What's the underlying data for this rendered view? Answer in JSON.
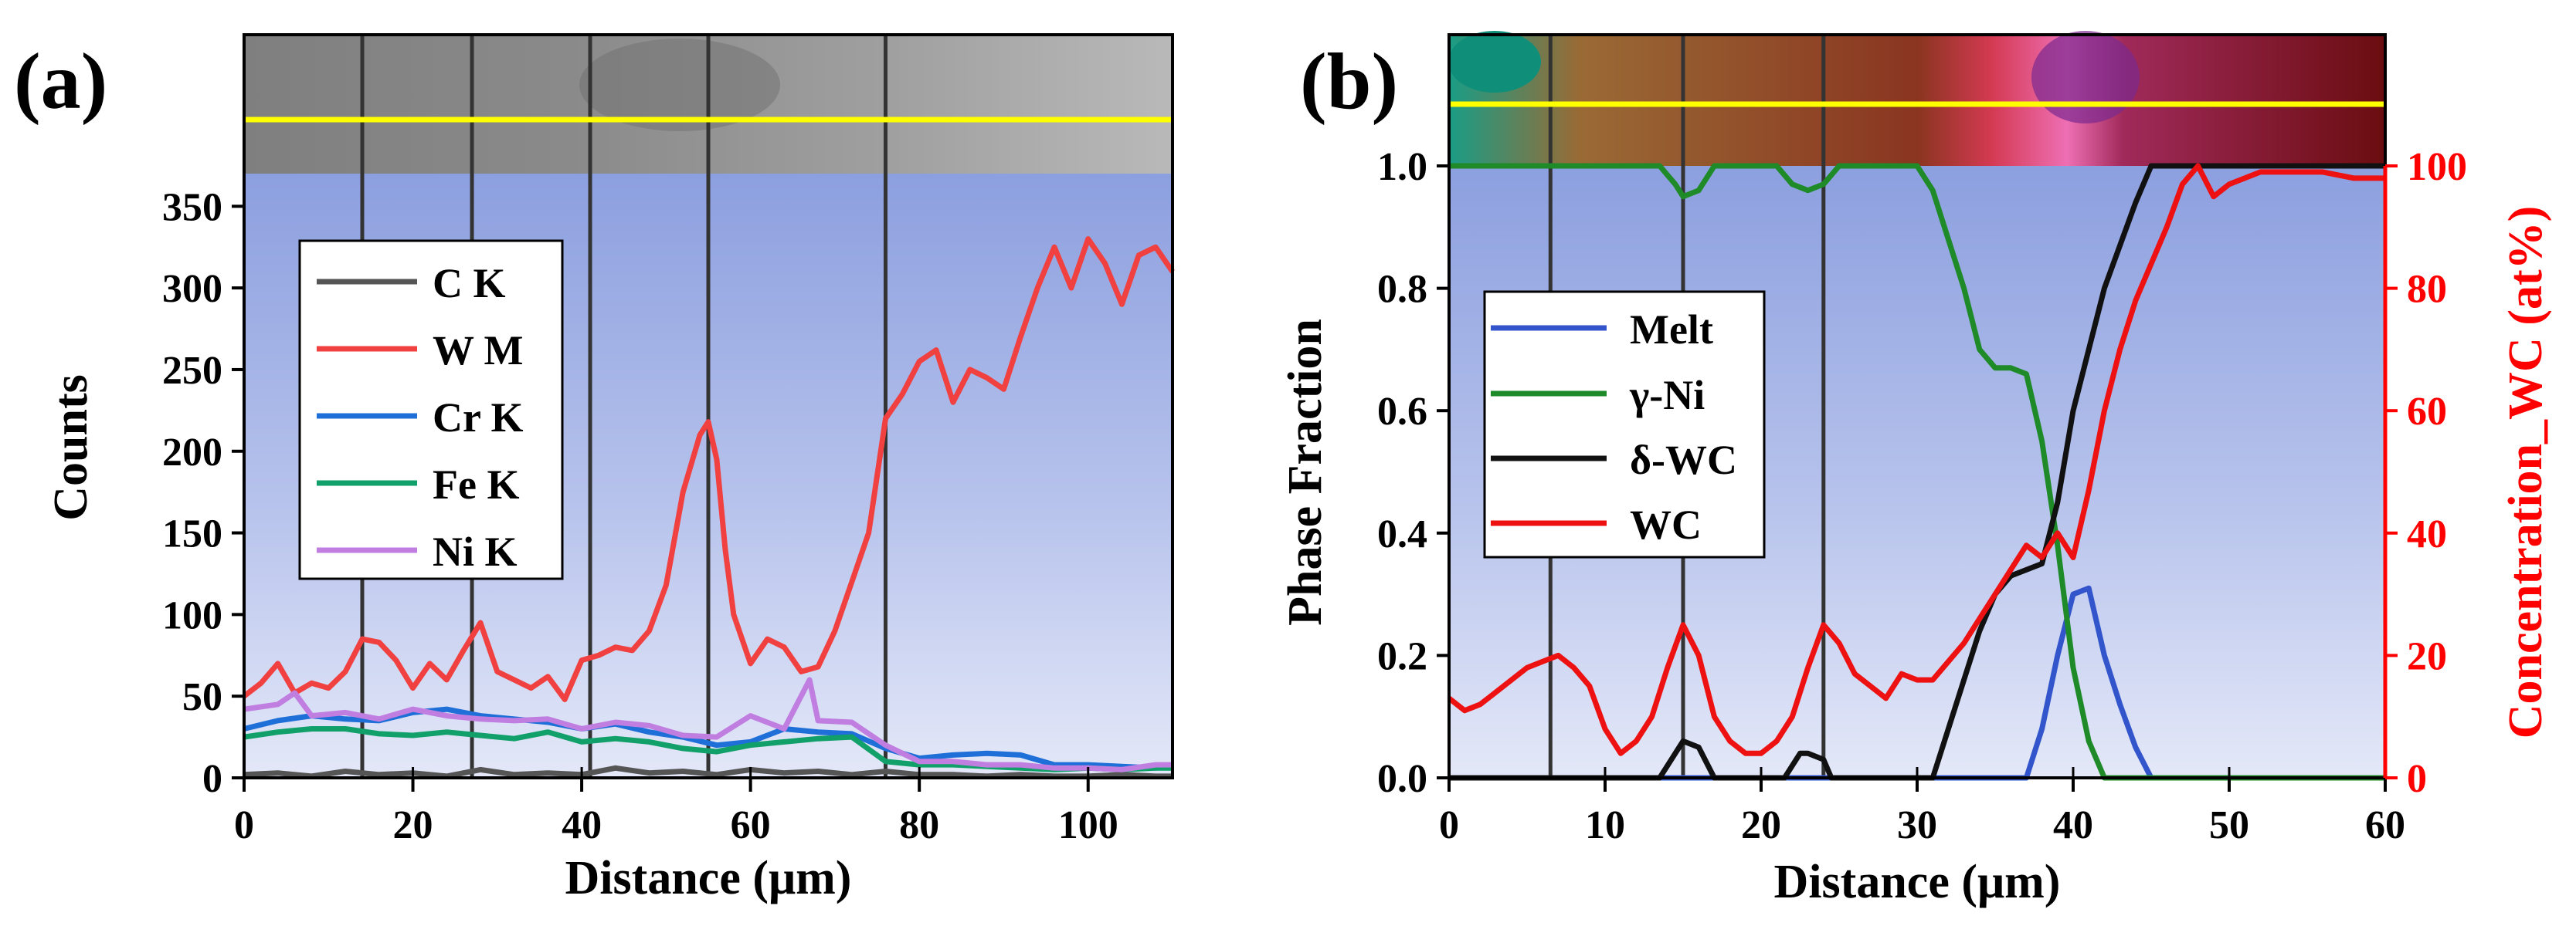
{
  "colors": {
    "ck": "#555555",
    "wm": "#f04040",
    "crk": "#1f6fd8",
    "fek": "#12a06a",
    "nik": "#c07ee0",
    "melt": "#3355cc",
    "gni": "#1e8a28",
    "dwc": "#111111",
    "wc": "#ee1111",
    "guide": "#333333",
    "scan": "#ffff00",
    "axis_right": "#ff0000"
  },
  "chart_data": [
    {
      "type": "line",
      "panel_label": "(a)",
      "xlabel": "Distance (μm)",
      "ylabel": "Counts",
      "xlim": [
        0,
        110
      ],
      "ylim": [
        0,
        370
      ],
      "xticks": [
        0,
        20,
        40,
        60,
        80,
        100
      ],
      "yticks": [
        0,
        50,
        100,
        150,
        200,
        250,
        300,
        350
      ],
      "guide_lines_x": [
        14,
        27,
        41,
        55,
        76
      ],
      "legend": {
        "position": "upper-left",
        "entries": [
          "C K",
          "W M",
          "Cr K",
          "Fe K",
          "Ni K"
        ]
      },
      "series": [
        {
          "name": "C K",
          "color_key": "ck",
          "x": [
            0,
            4,
            8,
            12,
            16,
            20,
            24,
            28,
            32,
            36,
            40,
            44,
            48,
            52,
            56,
            60,
            64,
            68,
            72,
            76,
            80,
            84,
            88,
            92,
            96,
            100,
            104,
            108,
            110
          ],
          "y": [
            2,
            3,
            1,
            4,
            2,
            3,
            1,
            5,
            2,
            3,
            2,
            6,
            3,
            4,
            2,
            5,
            3,
            4,
            2,
            4,
            2,
            2,
            1,
            2,
            1,
            1,
            2,
            1,
            1
          ]
        },
        {
          "name": "W M",
          "color_key": "wm",
          "x": [
            0,
            2,
            4,
            6,
            8,
            10,
            12,
            14,
            16,
            18,
            20,
            22,
            24,
            26,
            28,
            30,
            32,
            34,
            36,
            38,
            40,
            42,
            44,
            46,
            48,
            50,
            52,
            54,
            55,
            56,
            57,
            58,
            60,
            62,
            64,
            66,
            68,
            70,
            72,
            74,
            76,
            78,
            80,
            82,
            84,
            86,
            88,
            90,
            92,
            94,
            96,
            98,
            100,
            102,
            104,
            106,
            108,
            110
          ],
          "y": [
            50,
            58,
            70,
            52,
            58,
            55,
            65,
            85,
            83,
            72,
            55,
            70,
            60,
            78,
            95,
            65,
            60,
            55,
            62,
            48,
            72,
            75,
            80,
            78,
            90,
            118,
            175,
            210,
            218,
            195,
            140,
            100,
            70,
            85,
            80,
            65,
            68,
            90,
            120,
            150,
            220,
            235,
            255,
            262,
            230,
            250,
            245,
            238,
            270,
            300,
            325,
            300,
            330,
            315,
            290,
            320,
            325,
            310
          ]
        },
        {
          "name": "Cr K",
          "color_key": "crk",
          "x": [
            0,
            4,
            8,
            12,
            16,
            20,
            24,
            28,
            32,
            36,
            40,
            44,
            48,
            52,
            56,
            60,
            64,
            68,
            72,
            76,
            80,
            84,
            88,
            92,
            96,
            100,
            104,
            108,
            110
          ],
          "y": [
            30,
            35,
            38,
            36,
            35,
            40,
            42,
            38,
            36,
            34,
            30,
            33,
            28,
            25,
            20,
            22,
            30,
            28,
            27,
            18,
            12,
            14,
            15,
            14,
            8,
            8,
            7,
            6,
            8
          ]
        },
        {
          "name": "Fe K",
          "color_key": "fek",
          "x": [
            0,
            4,
            8,
            12,
            16,
            20,
            24,
            28,
            32,
            36,
            40,
            44,
            48,
            52,
            56,
            60,
            64,
            68,
            72,
            76,
            80,
            84,
            88,
            92,
            96,
            100,
            104,
            108,
            110
          ],
          "y": [
            25,
            28,
            30,
            30,
            27,
            26,
            28,
            26,
            24,
            28,
            22,
            24,
            22,
            18,
            16,
            20,
            22,
            24,
            25,
            10,
            8,
            8,
            7,
            6,
            5,
            6,
            5,
            6,
            6
          ]
        },
        {
          "name": "Ni K",
          "color_key": "nik",
          "x": [
            0,
            4,
            6,
            8,
            12,
            16,
            20,
            24,
            28,
            32,
            36,
            40,
            44,
            48,
            52,
            56,
            60,
            64,
            67,
            68,
            72,
            76,
            80,
            84,
            88,
            92,
            96,
            100,
            104,
            108,
            110
          ],
          "y": [
            42,
            45,
            52,
            38,
            40,
            36,
            42,
            38,
            36,
            35,
            36,
            30,
            34,
            32,
            26,
            25,
            38,
            30,
            60,
            35,
            34,
            20,
            10,
            10,
            8,
            8,
            6,
            6,
            5,
            8,
            8
          ]
        }
      ]
    },
    {
      "type": "line",
      "panel_label": "(b)",
      "xlabel": "Distance (μm)",
      "ylabel": "Phase Fraction",
      "ylabel_right": "Concentration_WC (at%)",
      "xlim": [
        0,
        60
      ],
      "ylim": [
        0,
        1.0
      ],
      "ylim_right": [
        0,
        100
      ],
      "xticks": [
        0,
        10,
        20,
        30,
        40,
        50,
        60
      ],
      "yticks": [
        0.0,
        0.2,
        0.4,
        0.6,
        0.8,
        1.0
      ],
      "yticks_right": [
        0,
        20,
        40,
        60,
        80,
        100
      ],
      "guide_lines_x": [
        6.5,
        15,
        24
      ],
      "legend": {
        "position": "upper-left",
        "entries": [
          "Melt",
          "γ-Ni",
          "δ-WC",
          "WC"
        ]
      },
      "series": [
        {
          "name": "Melt",
          "color_key": "melt",
          "axis": "left",
          "x": [
            0,
            37,
            38,
            39,
            40,
            41,
            42,
            43,
            44,
            45,
            60
          ],
          "y": [
            0,
            0,
            0.08,
            0.2,
            0.3,
            0.31,
            0.2,
            0.12,
            0.05,
            0,
            0
          ]
        },
        {
          "name": "γ-Ni",
          "color_key": "gni",
          "axis": "left",
          "x": [
            0,
            13.5,
            14.5,
            15,
            16,
            17,
            18,
            21,
            22,
            23,
            24,
            25,
            30,
            31,
            32,
            33,
            34,
            35,
            36,
            37,
            38,
            39,
            40,
            41,
            42,
            60
          ],
          "y": [
            1,
            1,
            0.97,
            0.95,
            0.96,
            1,
            1,
            1,
            0.97,
            0.96,
            0.97,
            1,
            1,
            0.96,
            0.88,
            0.8,
            0.7,
            0.67,
            0.67,
            0.66,
            0.55,
            0.38,
            0.18,
            0.06,
            0,
            0
          ]
        },
        {
          "name": "δ-WC",
          "color_key": "dwc",
          "axis": "left",
          "x": [
            0,
            13.5,
            14.5,
            15,
            16,
            17,
            21.5,
            22.5,
            23,
            24,
            24.5,
            31,
            32,
            33,
            34,
            35,
            36,
            37,
            38,
            39,
            40,
            41,
            42,
            43,
            44,
            45,
            46,
            60
          ],
          "y": [
            0,
            0,
            0.04,
            0.06,
            0.05,
            0,
            0,
            0.04,
            0.04,
            0.03,
            0,
            0,
            0.08,
            0.16,
            0.24,
            0.3,
            0.33,
            0.34,
            0.35,
            0.45,
            0.6,
            0.7,
            0.8,
            0.87,
            0.94,
            1,
            1,
            1
          ]
        },
        {
          "name": "WC",
          "color_key": "wc",
          "axis": "right",
          "x": [
            0,
            1,
            2,
            3,
            4,
            5,
            6,
            7,
            8,
            9,
            10,
            11,
            12,
            13,
            14,
            15,
            16,
            17,
            18,
            19,
            20,
            21,
            22,
            23,
            24,
            25,
            26,
            27,
            28,
            29,
            30,
            31,
            32,
            33,
            34,
            35,
            36,
            37,
            38,
            39,
            40,
            41,
            42,
            43,
            44,
            45,
            46,
            47,
            48,
            49,
            50,
            52,
            54,
            56,
            58,
            60
          ],
          "y": [
            13,
            11,
            12,
            14,
            16,
            18,
            19,
            20,
            18,
            15,
            8,
            4,
            6,
            10,
            18,
            25,
            20,
            10,
            6,
            4,
            4,
            6,
            10,
            18,
            25,
            22,
            17,
            15,
            13,
            17,
            16,
            16,
            19,
            22,
            26,
            30,
            34,
            38,
            36,
            40,
            36,
            47,
            60,
            70,
            78,
            84,
            90,
            97,
            100,
            95,
            97,
            99,
            99,
            99,
            98,
            98
          ]
        }
      ]
    }
  ]
}
